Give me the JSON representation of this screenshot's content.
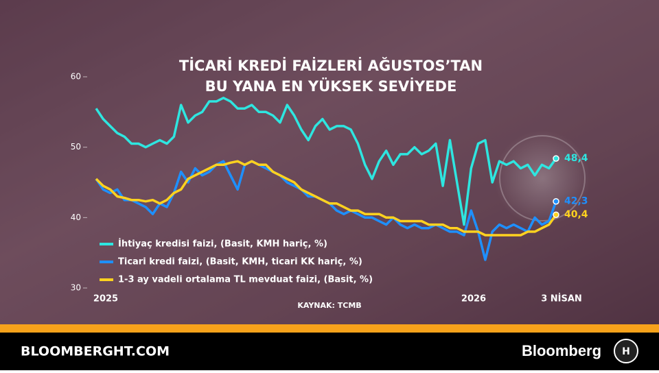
{
  "chart_data": {
    "type": "line",
    "title": [
      "TİCARİ KREDİ FAİZLERİ AĞUSTOS’TAN",
      "BU YANA EN YÜKSEK SEVİYEDE"
    ],
    "source": "KAYNAK: TCMB",
    "categories": [
      "2025",
      null,
      null,
      null,
      null,
      null,
      null,
      null,
      null,
      null,
      null,
      null,
      null,
      null,
      null,
      null,
      null,
      null,
      null,
      null,
      null,
      null,
      null,
      null,
      null,
      null,
      null,
      null,
      null,
      null,
      null,
      null,
      null,
      null,
      null,
      null,
      null,
      null,
      null,
      null,
      null,
      null,
      null,
      null,
      null,
      null,
      null,
      null,
      null,
      null,
      null,
      null,
      "2026",
      null,
      null,
      null,
      null,
      null,
      null,
      null,
      null,
      null,
      null,
      null,
      null,
      "3 NİSAN"
    ],
    "ylim": [
      30,
      60
    ],
    "yticks": [
      30,
      40,
      50,
      60
    ],
    "grid": false,
    "series": [
      {
        "name": "İhtiyaç kredisi faizi, (Basit, KMH hariç, %)",
        "color": "#2ee6e0",
        "values": [
          55.5,
          54,
          53,
          52,
          51.5,
          50.5,
          50.5,
          50,
          50.5,
          51,
          50.5,
          51.5,
          56,
          53.5,
          54.5,
          55,
          56.5,
          56.5,
          57,
          56.5,
          55.5,
          55.5,
          56,
          55,
          55,
          54.5,
          53.5,
          56,
          54.5,
          52.5,
          51,
          53,
          54,
          52.5,
          53,
          53,
          52.5,
          50.5,
          47.5,
          45.5,
          48,
          49.5,
          47.5,
          49,
          49,
          50,
          49,
          49.5,
          50.5,
          44.5,
          51,
          45,
          39,
          47,
          50.5,
          51,
          45,
          48,
          47.5,
          48,
          47,
          47.5,
          46,
          47.5,
          47,
          48.4
        ],
        "value_labels": [
          null,
          null,
          null,
          null,
          null,
          null,
          null,
          null,
          null,
          null,
          null,
          null,
          null,
          null,
          null,
          null,
          null,
          null,
          null,
          null,
          null,
          null,
          null,
          null,
          null,
          null,
          null,
          null,
          null,
          null,
          null,
          null,
          null,
          null,
          null,
          null,
          null,
          null,
          null,
          null,
          null,
          null,
          null,
          null,
          null,
          null,
          null,
          null,
          null,
          null,
          null,
          null,
          null,
          null,
          null,
          null,
          null,
          null,
          null,
          null,
          null,
          null,
          null,
          null,
          null,
          "48,4"
        ]
      },
      {
        "name": "Ticari kredi faizi, (Basit, KMH, ticari KK hariç, %)",
        "color": "#1e90ff",
        "values": [
          45.5,
          44,
          43.5,
          44,
          42.5,
          42.5,
          42,
          41.5,
          40.5,
          42,
          41.5,
          43.5,
          46.5,
          45,
          47,
          46,
          46.5,
          47.5,
          48,
          46,
          44,
          47.5,
          48,
          47.5,
          47,
          46.5,
          46,
          45,
          44.5,
          44,
          43,
          43,
          42.5,
          42,
          41,
          40.5,
          41,
          40.5,
          40,
          40,
          39.5,
          39,
          40,
          39,
          38.5,
          39,
          38.5,
          38.5,
          39,
          38.5,
          38,
          38,
          37.5,
          41,
          38,
          34,
          38,
          39,
          38.5,
          39,
          38.5,
          38,
          40,
          39,
          39.5,
          42.3
        ],
        "value_labels": [
          null,
          null,
          null,
          null,
          null,
          null,
          null,
          null,
          null,
          null,
          null,
          null,
          null,
          null,
          null,
          null,
          null,
          null,
          null,
          null,
          null,
          null,
          null,
          null,
          null,
          null,
          null,
          null,
          null,
          null,
          null,
          null,
          null,
          null,
          null,
          null,
          null,
          null,
          null,
          null,
          null,
          null,
          null,
          null,
          null,
          null,
          null,
          null,
          null,
          null,
          null,
          null,
          null,
          null,
          null,
          null,
          null,
          null,
          null,
          null,
          null,
          null,
          null,
          null,
          null,
          "42,3"
        ]
      },
      {
        "name": "1-3 ay vadeli ortalama TL mevduat faizi, (Basit,  %)",
        "color": "#ffd21f",
        "values": [
          45.5,
          44.5,
          44,
          43,
          42.8,
          42.5,
          42.5,
          42.3,
          42.5,
          42,
          42.5,
          43.5,
          44,
          45.5,
          46,
          46.5,
          47,
          47.5,
          47.5,
          47.8,
          48,
          47.5,
          48,
          47.5,
          47.5,
          46.5,
          46,
          45.5,
          45,
          44,
          43.5,
          43,
          42.5,
          42,
          42,
          41.5,
          41,
          41,
          40.5,
          40.5,
          40.5,
          40,
          40,
          39.5,
          39.5,
          39.5,
          39.5,
          39,
          39,
          39,
          38.5,
          38.5,
          38,
          38,
          38,
          37.5,
          37.5,
          37.5,
          37.5,
          37.5,
          37.5,
          38,
          38,
          38.5,
          39,
          40.4
        ],
        "value_labels": [
          null,
          null,
          null,
          null,
          null,
          null,
          null,
          null,
          null,
          null,
          null,
          null,
          null,
          null,
          null,
          null,
          null,
          null,
          null,
          null,
          null,
          null,
          null,
          null,
          null,
          null,
          null,
          null,
          null,
          null,
          null,
          null,
          null,
          null,
          null,
          null,
          null,
          null,
          null,
          null,
          null,
          null,
          null,
          null,
          null,
          null,
          null,
          null,
          null,
          null,
          null,
          null,
          null,
          null,
          null,
          null,
          null,
          null,
          null,
          null,
          null,
          null,
          null,
          null,
          null,
          "40,4"
        ]
      }
    ]
  },
  "footer": {
    "site": "BLOOMBERGHT.COM",
    "brand": "Bloomberg"
  }
}
